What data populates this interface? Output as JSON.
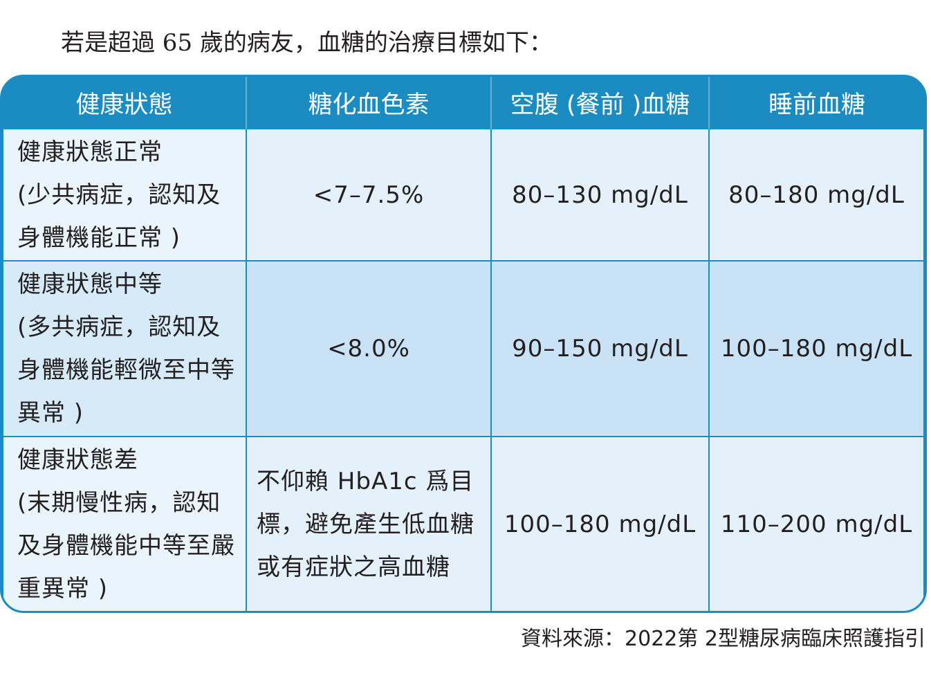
{
  "intro": "若是超過 65 歲的病友，血糖的治療目標如下：",
  "table": {
    "header": [
      "健康狀態",
      "糖化血色素",
      "空腹 (餐前 )血糖",
      "睡前血糖"
    ],
    "rows": [
      {
        "status": "健康狀態正常",
        "status_note": "(少共病症，認知及身體機能正常 )",
        "hba1c": "<7–7.5%",
        "fasting": "80–130 mg/dL",
        "bedtime": "80–180 mg/dL"
      },
      {
        "status": "健康狀態中等",
        "status_note": "(多共病症，認知及身體機能輕微至中等異常 )",
        "hba1c": "<8.0%",
        "fasting": "90–150 mg/dL",
        "bedtime": "100–180 mg/dL"
      },
      {
        "status": "健康狀態差",
        "status_note": "(末期慢性病，認知及身體機能中等至嚴重異常 )",
        "hba1c": "不仰賴 HbA1c 爲目標，避免產生低血糖或有症狀之高血糖",
        "fasting": "100–180 mg/dL",
        "bedtime": "110–200 mg/dL"
      }
    ]
  },
  "source": "資料來源：2022第 2型糖尿病臨床照護指引"
}
